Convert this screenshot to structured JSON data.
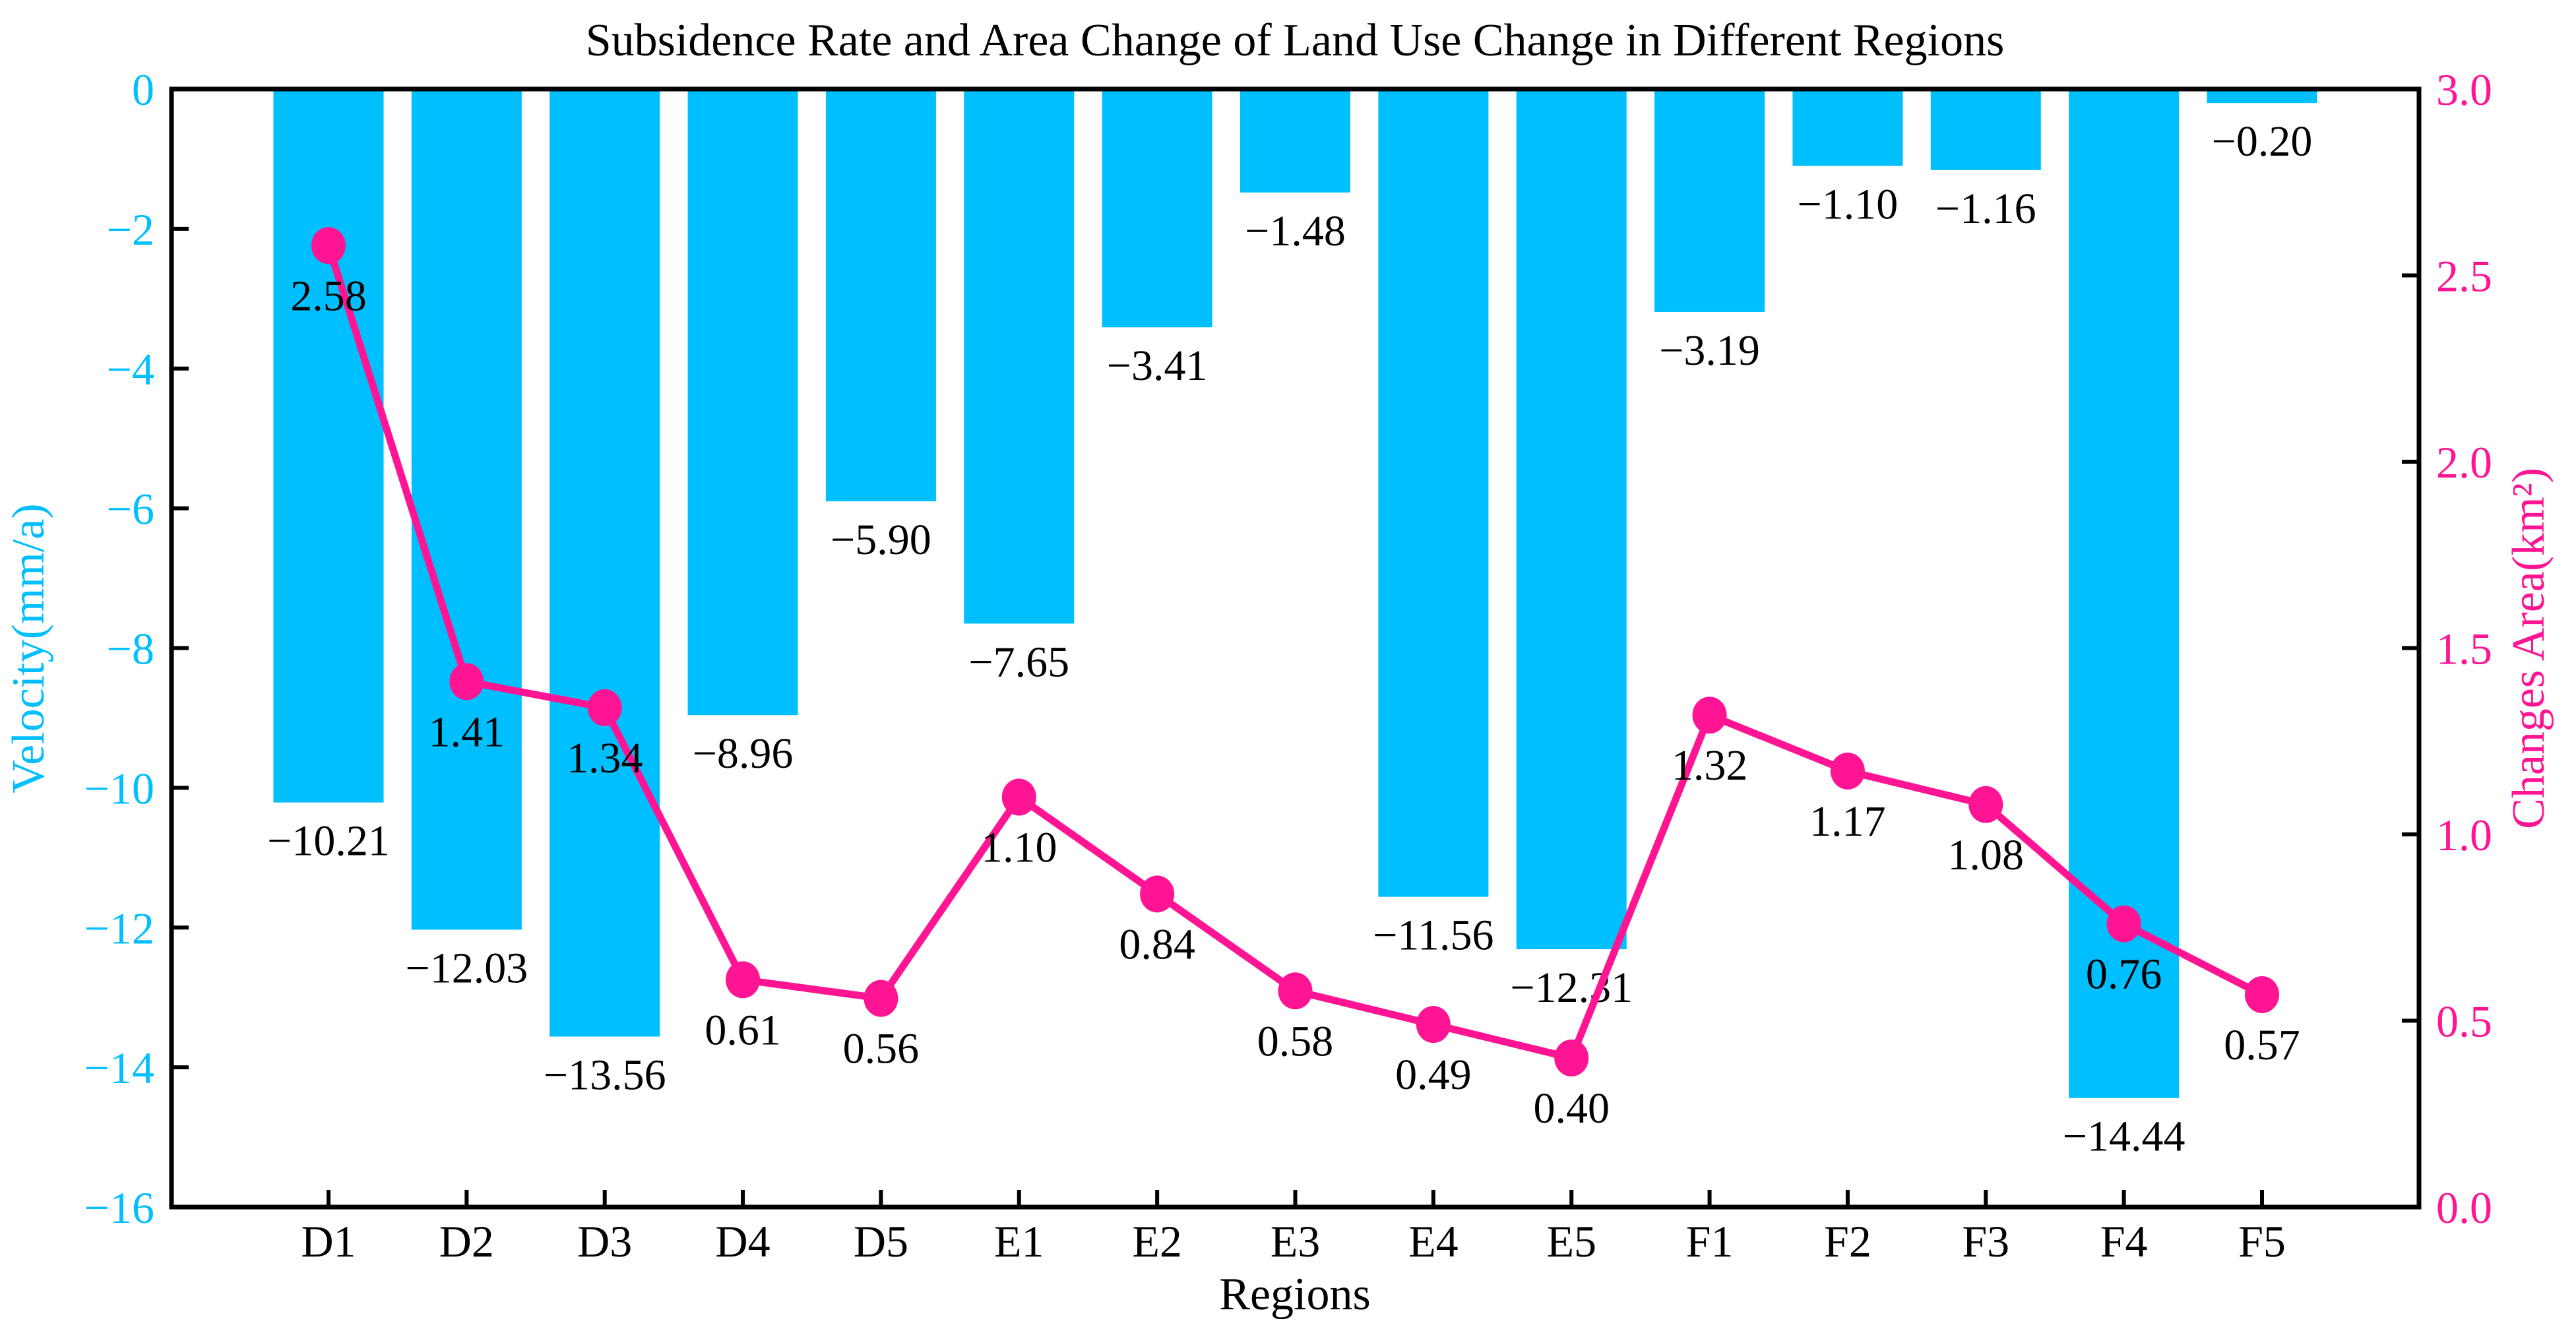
{
  "chart_data": {
    "type": "combo",
    "title": "Subsidence Rate and Area Change of Land Use Change in Different Regions",
    "xlabel": "Regions",
    "categories": [
      "D1",
      "D2",
      "D3",
      "D4",
      "D5",
      "E1",
      "E2",
      "E3",
      "E4",
      "E5",
      "F1",
      "F2",
      "F3",
      "F4",
      "F5"
    ],
    "series": [
      {
        "name": "Subsidence Rate",
        "type": "bar",
        "axis": "left",
        "color": "#00BFFF",
        "values": [
          -10.21,
          -12.03,
          -13.56,
          -8.96,
          -5.9,
          -7.65,
          -3.41,
          -1.48,
          -11.56,
          -12.31,
          -3.19,
          -1.1,
          -1.16,
          -14.44,
          -0.2
        ]
      },
      {
        "name": "Changes Area",
        "type": "line",
        "axis": "right",
        "color": "#FF1493",
        "values": [
          2.58,
          1.41,
          1.34,
          0.61,
          0.56,
          1.1,
          0.84,
          0.58,
          0.49,
          0.4,
          1.32,
          1.17,
          1.08,
          0.76,
          0.57
        ]
      }
    ],
    "left_axis": {
      "label": "Velocity(mm/a)",
      "color": "#00BFFF",
      "min": -16,
      "max": 0,
      "ticks": [
        0,
        -2,
        -4,
        -6,
        -8,
        -10,
        -12,
        -14,
        -16
      ]
    },
    "right_axis": {
      "label": "Changes Area(km²)",
      "color": "#FF1493",
      "min": 0.0,
      "max": 3.0,
      "ticks": [
        3.0,
        2.5,
        2.0,
        1.5,
        1.0,
        0.5,
        0.0
      ]
    },
    "value_labels_decimals": 2,
    "grid": false,
    "legend": "none",
    "frame_color": "#000000"
  }
}
